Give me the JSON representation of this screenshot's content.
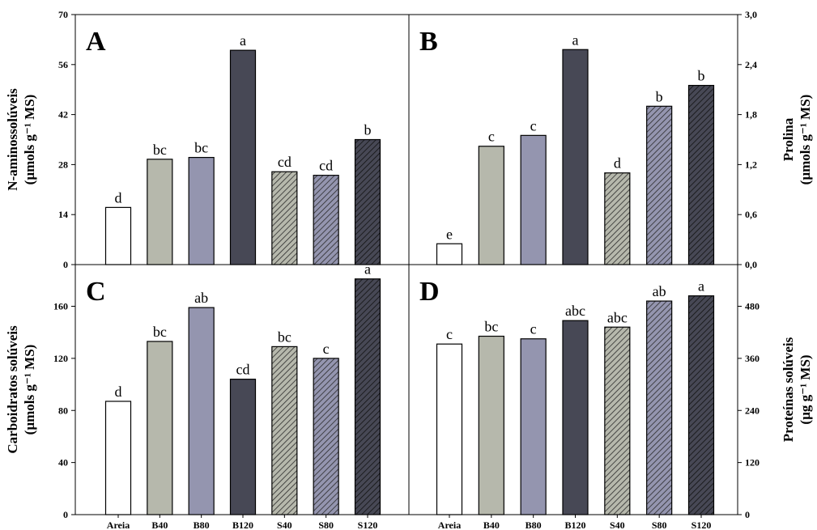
{
  "colors": {
    "Areia": "#ffffff",
    "B40": "#b6b8ac",
    "B80": "#9495af",
    "B120": "#474855",
    "S40": "#b6b8ac",
    "S80": "#9495af",
    "S120": "#474855"
  },
  "chart_data": [
    {
      "id": "A",
      "type": "bar",
      "panel_label": "A",
      "categories": [
        "Areia",
        "B40",
        "B80",
        "B120",
        "S40",
        "S80",
        "S120"
      ],
      "values": [
        16,
        29.5,
        30,
        60,
        26,
        25,
        35
      ],
      "letters": [
        "d",
        "bc",
        "bc",
        "a",
        "cd",
        "cd",
        "b"
      ],
      "hatched": [
        false,
        false,
        false,
        false,
        true,
        true,
        true
      ],
      "ylabel": "N-aminossolúveis",
      "ylabel2": "(µmols g⁻¹ MS)",
      "ylim": [
        0,
        70
      ],
      "yticks": [
        "0",
        "14",
        "28",
        "42",
        "56",
        "70"
      ],
      "axis_side": "left",
      "show_categories": false,
      "legend": "none"
    },
    {
      "id": "B",
      "type": "bar",
      "panel_label": "B",
      "categories": [
        "Areia",
        "B40",
        "B80",
        "B120",
        "S40",
        "S80",
        "S120"
      ],
      "values": [
        0.25,
        1.42,
        1.55,
        2.58,
        1.1,
        1.9,
        2.15
      ],
      "letters": [
        "e",
        "c",
        "c",
        "a",
        "d",
        "b",
        "b"
      ],
      "hatched": [
        false,
        false,
        false,
        false,
        true,
        true,
        true
      ],
      "ylabel": "Prolina",
      "ylabel2": "(µmols g⁻¹ MS)",
      "ylim": [
        0,
        3.0
      ],
      "yticks": [
        "0,0",
        "0,6",
        "1,2",
        "1,8",
        "2,4",
        "3,0"
      ],
      "axis_side": "right",
      "show_categories": false,
      "legend": "none"
    },
    {
      "id": "C",
      "type": "bar",
      "panel_label": "C",
      "categories": [
        "Areia",
        "B40",
        "B80",
        "B120",
        "S40",
        "S80",
        "S120"
      ],
      "values": [
        87,
        133,
        159,
        104,
        129,
        120,
        181
      ],
      "letters": [
        "d",
        "bc",
        "ab",
        "cd",
        "bc",
        "c",
        "a"
      ],
      "hatched": [
        false,
        false,
        false,
        false,
        true,
        true,
        true
      ],
      "ylabel": "Carboidratos solúveis",
      "ylabel2": "(µmols g⁻¹ MS)",
      "ylim": [
        0,
        192
      ],
      "yticks": [
        "0",
        "40",
        "80",
        "120",
        "160"
      ],
      "axis_side": "left",
      "show_categories": true,
      "legend": "none"
    },
    {
      "id": "D",
      "type": "bar",
      "panel_label": "D",
      "categories": [
        "Areia",
        "B40",
        "B80",
        "B120",
        "S40",
        "S80",
        "S120"
      ],
      "values": [
        393,
        411,
        405,
        447,
        432,
        492,
        504
      ],
      "letters": [
        "c",
        "bc",
        "c",
        "abc",
        "abc",
        "ab",
        "a"
      ],
      "hatched": [
        false,
        false,
        false,
        false,
        true,
        true,
        true
      ],
      "ylabel": "Proteínas solúveis",
      "ylabel2": "(µg g⁻¹ MS)",
      "ylim": [
        0,
        576
      ],
      "yticks": [
        "0",
        "120",
        "240",
        "360",
        "480"
      ],
      "axis_side": "right",
      "show_categories": true,
      "legend": "none"
    }
  ]
}
